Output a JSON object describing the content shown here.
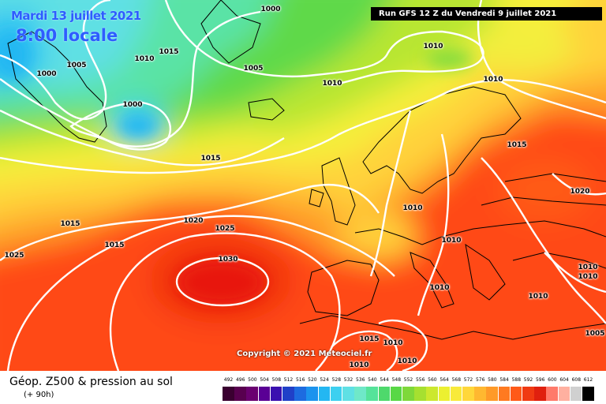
{
  "header": {
    "date": "Mardi 13 juillet 2021",
    "local_time": "8:00 locale",
    "run": "Run GFS 12 Z du Vendredi 9 juillet 2021"
  },
  "copyright": "Copyright © 2021 Meteociel.fr",
  "legend": {
    "title": "Géop. Z500 & pression au sol",
    "subtitle": "(+ 90h)",
    "scale_values": [
      "492",
      "496",
      "500",
      "504",
      "508",
      "512",
      "516",
      "520",
      "524",
      "528",
      "532",
      "536",
      "540",
      "544",
      "548",
      "552",
      "556",
      "560",
      "564",
      "568",
      "572",
      "576",
      "580",
      "584",
      "588",
      "592",
      "596",
      "600",
      "604",
      "608",
      "612"
    ],
    "scale_colors": [
      "#3a0030",
      "#58004f",
      "#6a0070",
      "#5a0095",
      "#3a10b0",
      "#2040c8",
      "#1d6be0",
      "#1b93ee",
      "#23b7f2",
      "#3dd0f0",
      "#5fe0e4",
      "#6fe8c8",
      "#55e39a",
      "#4ed96c",
      "#58d846",
      "#7ed83a",
      "#a6e030",
      "#cce82e",
      "#ecf030",
      "#f8ea3a",
      "#ffd73a",
      "#ffb830",
      "#ff9a28",
      "#ff7a20",
      "#ff5a18",
      "#f03a12",
      "#e0200e",
      "#ff7a6a",
      "#ffb0a0",
      "#d0d0d0",
      "#000000"
    ]
  },
  "isobars": [
    {
      "v": "1000",
      "name": "isobar-label-1000-north"
    },
    {
      "v": "1010",
      "name": "isobar-label-1010-greenland"
    },
    {
      "v": "1015",
      "name": "isobar-label-1015-greenland"
    },
    {
      "v": "1005",
      "name": "isobar-label-1005-west"
    },
    {
      "v": "1000",
      "name": "isobar-label-1000-west"
    },
    {
      "v": "1000",
      "name": "isobar-label-1000-greenland"
    },
    {
      "v": "1005",
      "name": "isobar-label-1005-greenland-east"
    },
    {
      "v": "1010",
      "name": "isobar-label-1010-iceland"
    },
    {
      "v": "1010",
      "name": "isobar-label-1010-norwegian-sea"
    },
    {
      "v": "1010",
      "name": "isobar-label-1010-scandinavia"
    },
    {
      "v": "1015",
      "name": "isobar-label-1015-baltic"
    },
    {
      "v": "1015",
      "name": "isobar-label-1015-atlantic"
    },
    {
      "v": "1020",
      "name": "isobar-label-1020-russia"
    },
    {
      "v": "1015",
      "name": "isobar-label-1015-west-atlantic"
    },
    {
      "v": "1025",
      "name": "isobar-label-1025-west"
    },
    {
      "v": "1015",
      "name": "isobar-label-1015-mid-atlantic"
    },
    {
      "v": "1020",
      "name": "isobar-label-1020-azores"
    },
    {
      "v": "1025",
      "name": "isobar-label-1025-azores"
    },
    {
      "v": "1030",
      "name": "isobar-label-1030-azores"
    },
    {
      "v": "1010",
      "name": "isobar-label-1010-france"
    },
    {
      "v": "1010",
      "name": "isobar-label-1010-alps"
    },
    {
      "v": "1010",
      "name": "isobar-label-1010-italy"
    },
    {
      "v": "1010",
      "name": "isobar-label-1010-balkans"
    },
    {
      "v": "1010",
      "name": "isobar-label-1010-black-sea"
    },
    {
      "v": "1010",
      "name": "isobar-label-1010-caucasus"
    },
    {
      "v": "1005",
      "name": "isobar-label-1005-turkey"
    },
    {
      "v": "1015",
      "name": "isobar-label-1015-algeria"
    },
    {
      "v": "1010",
      "name": "isobar-label-1010-tunisia"
    },
    {
      "v": "1010",
      "name": "isobar-label-1010-sahara"
    },
    {
      "v": "1010",
      "name": "isobar-label-1010-libya"
    }
  ]
}
